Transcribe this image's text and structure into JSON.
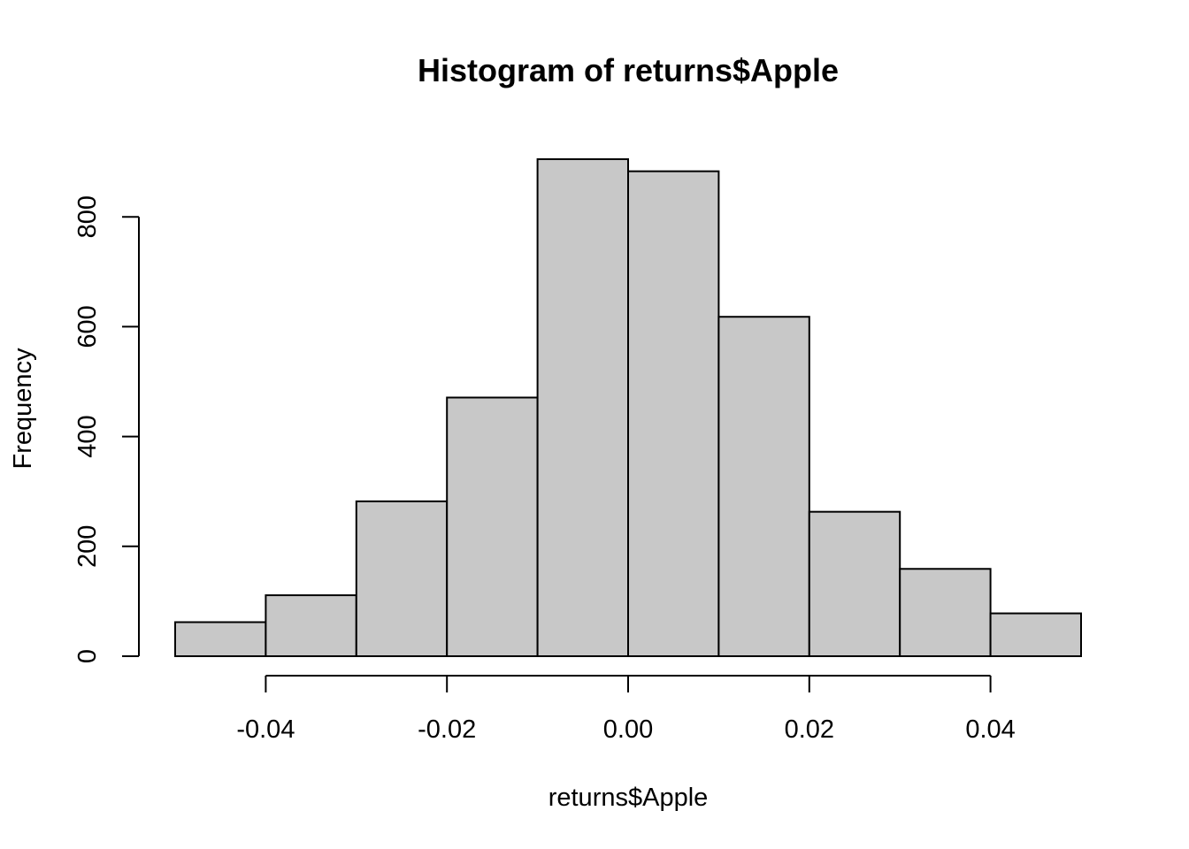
{
  "chart_data": {
    "type": "bar",
    "title": "Histogram of returns$Apple",
    "xlabel": "returns$Apple",
    "ylabel": "Frequency",
    "bin_edges": [
      -0.05,
      -0.04,
      -0.03,
      -0.02,
      -0.01,
      0.0,
      0.01,
      0.02,
      0.03,
      0.04,
      0.05
    ],
    "values": [
      62,
      111,
      282,
      471,
      905,
      883,
      618,
      263,
      159,
      78
    ],
    "xlim": [
      -0.05,
      0.05
    ],
    "ylim": [
      0,
      905
    ],
    "x_ticks": [
      -0.04,
      -0.02,
      0.0,
      0.02,
      0.04
    ],
    "x_tick_labels": [
      "-0.04",
      "-0.02",
      "0.00",
      "0.02",
      "0.04"
    ],
    "y_ticks": [
      0,
      200,
      400,
      600,
      800
    ],
    "y_tick_labels": [
      "0",
      "200",
      "400",
      "600",
      "800"
    ],
    "bar_fill": "#c8c8c8",
    "bar_stroke": "#000000",
    "grid": false,
    "legend": "none"
  }
}
